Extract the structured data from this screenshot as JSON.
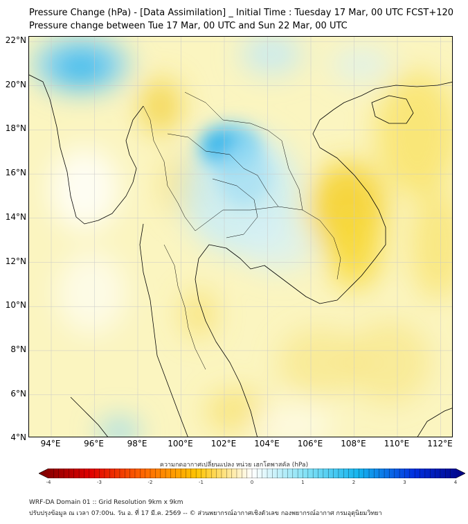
{
  "header": {
    "title_line1": "Pressure Change (hPa) - [Data Assimilation] _ Initial Time : Tuesday 17 Mar, 00 UTC FCST+120",
    "title_line2": "Pressure change between Tue 17 Mar, 00 UTC and Sun 22 Mar, 00 UTC"
  },
  "map": {
    "lat_labels": [
      "22°N",
      "20°N",
      "18°N",
      "16°N",
      "14°N",
      "12°N",
      "10°N",
      "8°N",
      "6°N",
      "4°N"
    ],
    "lon_labels": [
      "94°E",
      "96°E",
      "98°E",
      "100°E",
      "102°E",
      "104°E",
      "106°E",
      "108°E",
      "110°E",
      "112°E"
    ],
    "colors": {
      "background": "#fbf5c0",
      "pressure_drop": "#f5d230",
      "pressure_rise": "#40c8f0",
      "coastline": "#000000"
    }
  },
  "colorbar": {
    "title": "ความกดอากาศเปลี่ยนแปลง หน่วย เฮกโตพาสคัล (hPa)",
    "ticks": [
      "-4",
      "-3",
      "-2",
      "-1",
      "0",
      "1",
      "2",
      "3",
      "4"
    ],
    "colors": {
      "min": "#7a0000",
      "neutral": "#ffffff",
      "max": "#000080"
    }
  },
  "footer": {
    "line1": "WRF-DA Domain 01 :: Grid Resolution 9km x 9km",
    "line2": "ปรับปรุงข้อมูล ณ เวลา 07:00น. วัน อ. ที่ 17 มี.ค. 2569 -- © ส่วนพยากรณ์อากาศเชิงตัวเลข กองพยากรณ์อากาศ กรมอุตุนิยมวิทยา"
  }
}
